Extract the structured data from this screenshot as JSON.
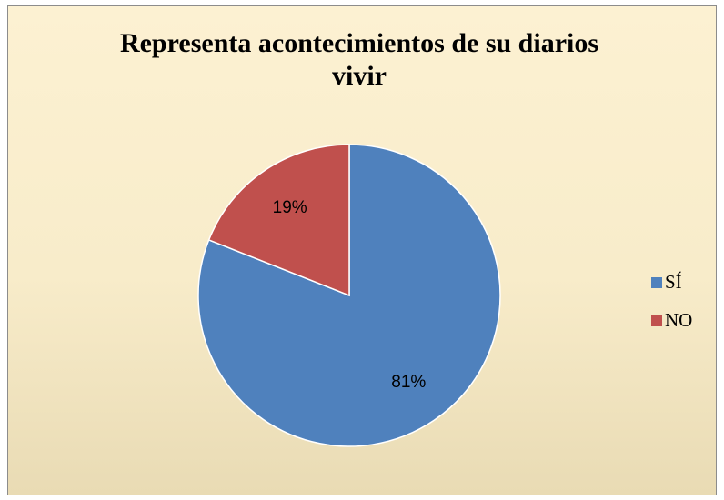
{
  "chart_data": {
    "type": "pie",
    "title": "Representa acontecimientos de su diarios vivir",
    "categories": [
      "SÍ",
      "NO"
    ],
    "values": [
      81,
      19
    ],
    "value_labels": [
      "81%",
      "19%"
    ],
    "colors": [
      "#4f81bd",
      "#c0504d"
    ],
    "legend": "right"
  }
}
